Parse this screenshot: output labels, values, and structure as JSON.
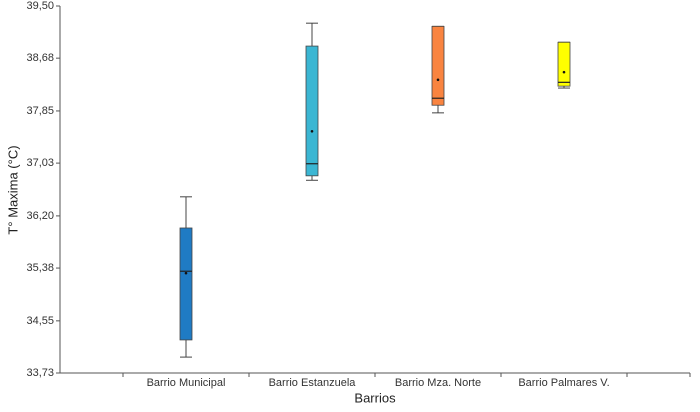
{
  "chart_data": {
    "type": "box",
    "x_label": "Barrios",
    "y_label": "T° Maxima (°C)",
    "categories": [
      "Barrio Municipal",
      "Barrio Estanzuela",
      "Barrio Mza. Norte",
      "Barrio Palmares V."
    ],
    "colors": [
      "#1f7bc4",
      "#3bb6d3",
      "#f98440",
      "#ffff00"
    ],
    "whisker_low": [
      33.98,
      36.76,
      37.82,
      38.21
    ],
    "q1": [
      34.25,
      36.83,
      37.94,
      38.24
    ],
    "median": [
      35.33,
      37.02,
      38.05,
      38.3
    ],
    "q3": [
      36.01,
      38.87,
      39.18,
      38.93
    ],
    "whisker_high": [
      36.5,
      39.23,
      39.18,
      38.93
    ],
    "mean": [
      35.3,
      37.53,
      38.34,
      38.46
    ],
    "ylim": [
      33.73,
      39.5
    ],
    "yticks": [
      {
        "value": 33.73,
        "label": "33,73"
      },
      {
        "value": 34.55,
        "label": "34,55"
      },
      {
        "value": 35.38,
        "label": "35,38"
      },
      {
        "value": 36.2,
        "label": "36,20"
      },
      {
        "value": 37.03,
        "label": "37,03"
      },
      {
        "value": 37.85,
        "label": "37,85"
      },
      {
        "value": 38.68,
        "label": "38,68"
      },
      {
        "value": 39.5,
        "label": "39,50"
      }
    ]
  }
}
